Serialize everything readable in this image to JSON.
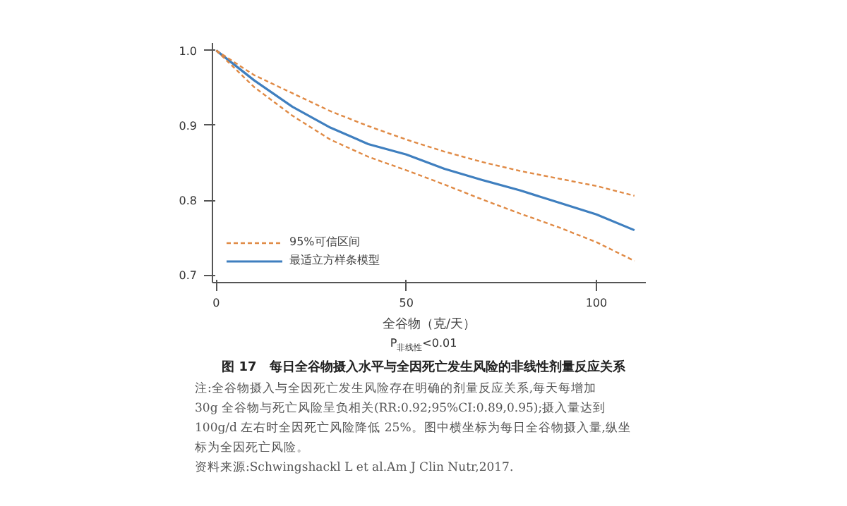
{
  "chart_data": {
    "type": "line",
    "title": "图 17　每日全谷物摄入水平与全因死亡发生风险的非线性剂量反应关系",
    "xlabel": "全谷物（克/天）",
    "x": [
      0,
      10,
      20,
      30,
      40,
      50,
      60,
      70,
      80,
      90,
      100,
      110
    ],
    "series": [
      {
        "name": "95%可信区间",
        "color": "#e08a45",
        "line_style": "dashed",
        "values": [
          1.0,
          0.967,
          0.943,
          0.919,
          0.899,
          0.881,
          0.865,
          0.851,
          0.839,
          0.829,
          0.819,
          0.806
        ]
      },
      {
        "color": "#e08a45",
        "line_style": "dashed",
        "values": [
          1.0,
          0.951,
          0.913,
          0.881,
          0.858,
          0.84,
          0.821,
          0.801,
          0.782,
          0.764,
          0.744,
          0.719
        ]
      },
      {
        "name": "最适立方样条模型",
        "color": "#3f7fbf",
        "line_style": "solid",
        "values": [
          1.0,
          0.96,
          0.925,
          0.897,
          0.875,
          0.861,
          0.842,
          0.827,
          0.813,
          0.797,
          0.781,
          0.76
        ]
      }
    ],
    "xlim": [
      -1,
      113
    ],
    "ylim": [
      0.69,
      1.01
    ],
    "xticks": [
      0,
      50,
      100
    ],
    "yticks": [
      0.7,
      0.8,
      0.9,
      {
        "value": 1,
        "label": "1.0"
      }
    ],
    "grid": false,
    "legend": "bottom left",
    "annotations": [
      "P$_{非线性}$<0.01",
      "注:全谷物摄入与全因死亡发生风险存在明确的剂量反应关系,每天每增加",
      "30g 全谷物与死亡风险呈负相关(RR:0.92;95%CI:0.89,0.95);摄入量达到",
      "100g/d 左右时全因死亡风险降低 25%。图中横坐标为每日全谷物摄入量,纵坐",
      "标为全因死亡风险。",
      "资料来源:Schwingshackl L et al.Am J Clin Nutr,2017."
    ]
  }
}
